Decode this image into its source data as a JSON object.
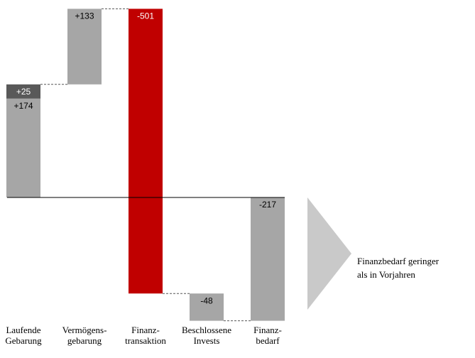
{
  "chart_data": {
    "type": "waterfall",
    "categories": [
      [
        "Laufende",
        "Gebarung"
      ],
      [
        "Vermögens-",
        "gebarung"
      ],
      [
        "Finanz-",
        "transaktion"
      ],
      [
        "Beschlossene",
        "Invests"
      ],
      [
        "Finanz-",
        "bedarf"
      ]
    ],
    "totals": [
      false,
      false,
      false,
      false,
      true
    ],
    "series": [
      {
        "values": [
          174,
          133,
          -501,
          -48,
          -217
        ],
        "value_labels": [
          "+174",
          "+133",
          "-501",
          "-48",
          "-217"
        ],
        "colors": [
          "#a6a6a6",
          "#a6a6a6",
          "#c00000",
          "#a6a6a6",
          "#a6a6a6"
        ]
      },
      {
        "values": [
          25,
          null,
          null,
          null,
          null
        ],
        "value_labels": [
          "+25",
          null,
          null,
          null,
          null
        ],
        "color": "#595959"
      }
    ],
    "annotation": [
      "Finanzbedarf geringer",
      "als in Vorjahren"
    ]
  }
}
